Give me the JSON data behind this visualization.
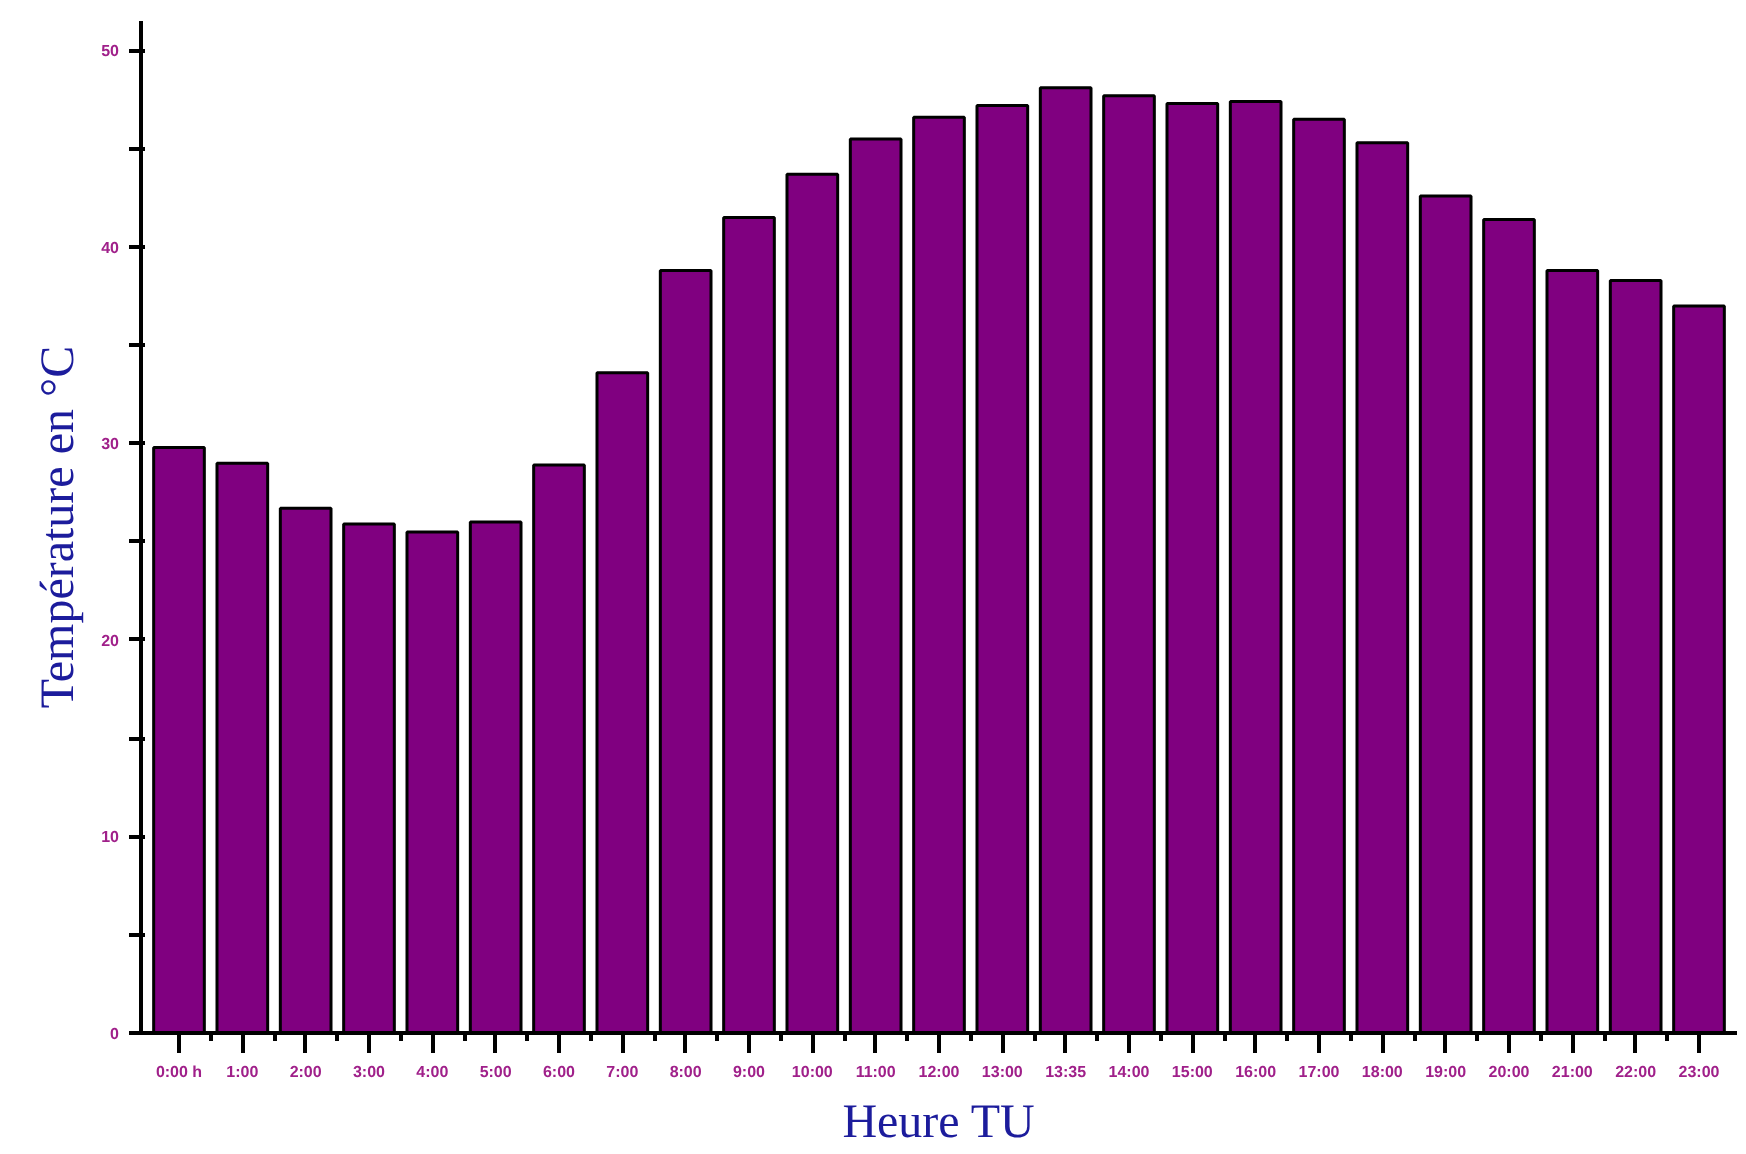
{
  "chart_data": {
    "type": "bar",
    "xlabel": "Heure TU",
    "ylabel": "Température en °C",
    "categories": [
      "0:00 h",
      "1:00",
      "2:00",
      "3:00",
      "4:00",
      "5:00",
      "6:00",
      "7:00",
      "8:00",
      "9:00",
      "10:00",
      "11:00",
      "12:00",
      "13:00",
      "13:35",
      "14:00",
      "15:00",
      "16:00",
      "17:00",
      "18:00",
      "19:00",
      "20:00",
      "21:00",
      "22:00",
      "23:00"
    ],
    "values": [
      29.8,
      29.0,
      26.7,
      25.9,
      25.5,
      26.0,
      28.9,
      33.6,
      38.8,
      41.5,
      43.7,
      45.5,
      46.6,
      47.2,
      48.1,
      47.7,
      47.3,
      47.4,
      46.5,
      45.3,
      42.6,
      41.4,
      38.8,
      38.3,
      37.0
    ],
    "color": "#800080",
    "ylim": [
      0,
      51.5
    ],
    "yticks": [
      0,
      {
        "value": 5,
        "label": null
      },
      10,
      {
        "value": 15,
        "label": null
      },
      20,
      {
        "value": 25,
        "label": null
      },
      30,
      {
        "value": 35,
        "label": null
      },
      40,
      {
        "value": 45,
        "label": null
      },
      50
    ],
    "grid": false
  }
}
